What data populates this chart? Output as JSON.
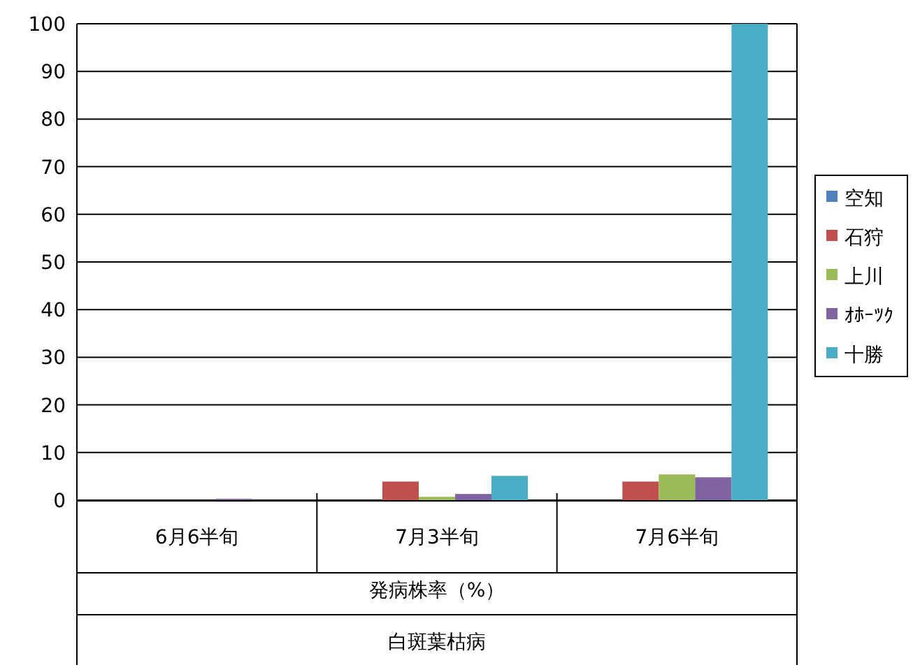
{
  "chart_data": {
    "type": "bar",
    "categories": [
      "6月6半旬",
      "7月3半旬",
      "7月6半旬"
    ],
    "xlabel": "発病株率（%）",
    "annotations": [
      "白斑葉枯病"
    ],
    "series": [
      {
        "name": "空知",
        "color": "#4f81bd",
        "values": [
          0,
          0,
          0
        ]
      },
      {
        "name": "石狩",
        "color": "#c0504d",
        "values": [
          0,
          3.9,
          3.9
        ]
      },
      {
        "name": "上川",
        "color": "#9bbb59",
        "values": [
          0,
          0.7,
          5.4
        ]
      },
      {
        "name": "ｵﾎｰﾂｸ",
        "color": "#8064a2",
        "values": [
          0.3,
          1.3,
          4.8
        ]
      },
      {
        "name": "十勝",
        "color": "#4bacc6",
        "values": [
          0,
          5.1,
          100
        ]
      }
    ],
    "ylim": [
      0,
      100
    ],
    "yticks": [
      0,
      10,
      20,
      30,
      40,
      50,
      60,
      70,
      80,
      90,
      100
    ],
    "grid": "y",
    "legend": "right"
  }
}
